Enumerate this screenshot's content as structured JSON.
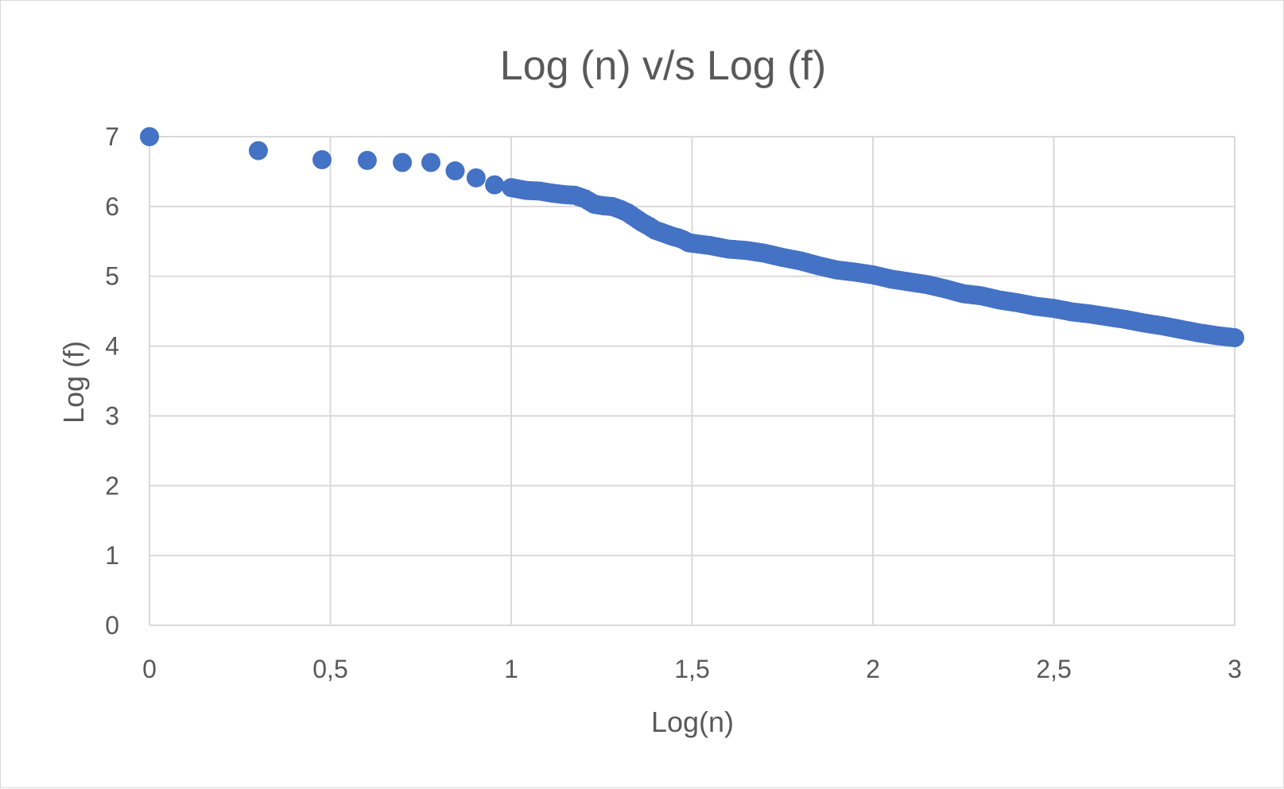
{
  "chart_data": {
    "type": "scatter",
    "title": "Log (n) v/s Log (f)",
    "xlabel": "Log(n)",
    "ylabel": "Log (f)",
    "xlim": [
      0,
      3
    ],
    "ylim": [
      0,
      7
    ],
    "x_ticks": [
      0,
      0.5,
      1,
      1.5,
      2,
      2.5,
      3
    ],
    "x_tick_labels": [
      "0",
      "0,5",
      "1",
      "1,5",
      "2",
      "2,5",
      "3"
    ],
    "y_ticks": [
      0,
      1,
      2,
      3,
      4,
      5,
      6,
      7
    ],
    "y_tick_labels": [
      "0",
      "1",
      "2",
      "3",
      "4",
      "5",
      "6",
      "7"
    ],
    "grid": true,
    "legend": "none",
    "marker_color": "#4472c4",
    "series": [
      {
        "x": [
          0,
          0.301,
          0.477,
          0.602,
          0.699,
          0.778,
          0.845,
          0.903,
          0.954,
          1.0,
          1.041,
          1.079,
          1.114,
          1.146,
          1.176,
          1.204,
          1.23,
          1.255,
          1.279,
          1.301,
          1.322,
          1.342,
          1.362,
          1.38,
          1.398,
          1.415,
          1.431,
          1.447,
          1.462,
          1.477,
          1.491,
          1.505,
          1.55,
          1.6,
          1.65,
          1.7,
          1.75,
          1.8,
          1.85,
          1.9,
          1.95,
          2.0,
          2.05,
          2.1,
          2.15,
          2.2,
          2.25,
          2.3,
          2.35,
          2.4,
          2.45,
          2.5,
          2.55,
          2.6,
          2.65,
          2.7,
          2.75,
          2.8,
          2.85,
          2.9,
          2.95,
          3.0
        ],
        "y": [
          7.0,
          6.8,
          6.67,
          6.66,
          6.63,
          6.63,
          6.51,
          6.41,
          6.31,
          6.27,
          6.23,
          6.22,
          6.19,
          6.17,
          6.16,
          6.11,
          6.03,
          6.01,
          6.0,
          5.96,
          5.91,
          5.84,
          5.77,
          5.72,
          5.66,
          5.63,
          5.6,
          5.57,
          5.55,
          5.52,
          5.48,
          5.47,
          5.44,
          5.39,
          5.37,
          5.33,
          5.27,
          5.22,
          5.15,
          5.09,
          5.06,
          5.02,
          4.96,
          4.92,
          4.88,
          4.82,
          4.75,
          4.72,
          4.66,
          4.62,
          4.57,
          4.54,
          4.49,
          4.46,
          4.42,
          4.38,
          4.33,
          4.29,
          4.24,
          4.19,
          4.15,
          4.12
        ]
      }
    ]
  }
}
